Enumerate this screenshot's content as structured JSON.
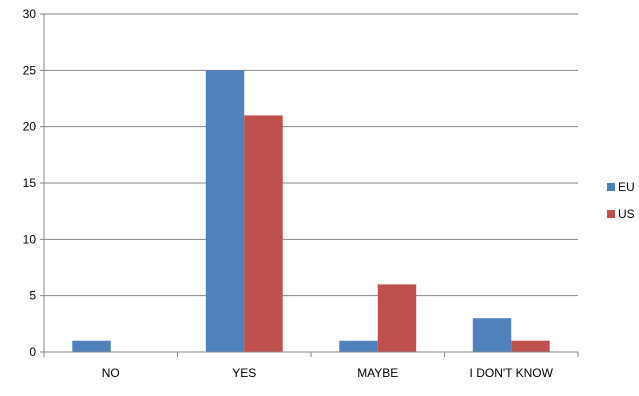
{
  "chart_data": {
    "type": "bar",
    "categories": [
      "NO",
      "YES",
      "MAYBE",
      "I DON'T KNOW"
    ],
    "series": [
      {
        "name": "EU",
        "values": [
          1,
          25,
          1,
          3
        ],
        "color": "#4F81BD"
      },
      {
        "name": "US",
        "values": [
          0,
          21,
          6,
          1
        ],
        "color": "#C0504D"
      }
    ],
    "ylim": [
      0,
      30
    ],
    "yticks": [
      "0",
      "5",
      "10",
      "15",
      "20",
      "25",
      "30"
    ],
    "grid": true,
    "legend_position": "right"
  }
}
